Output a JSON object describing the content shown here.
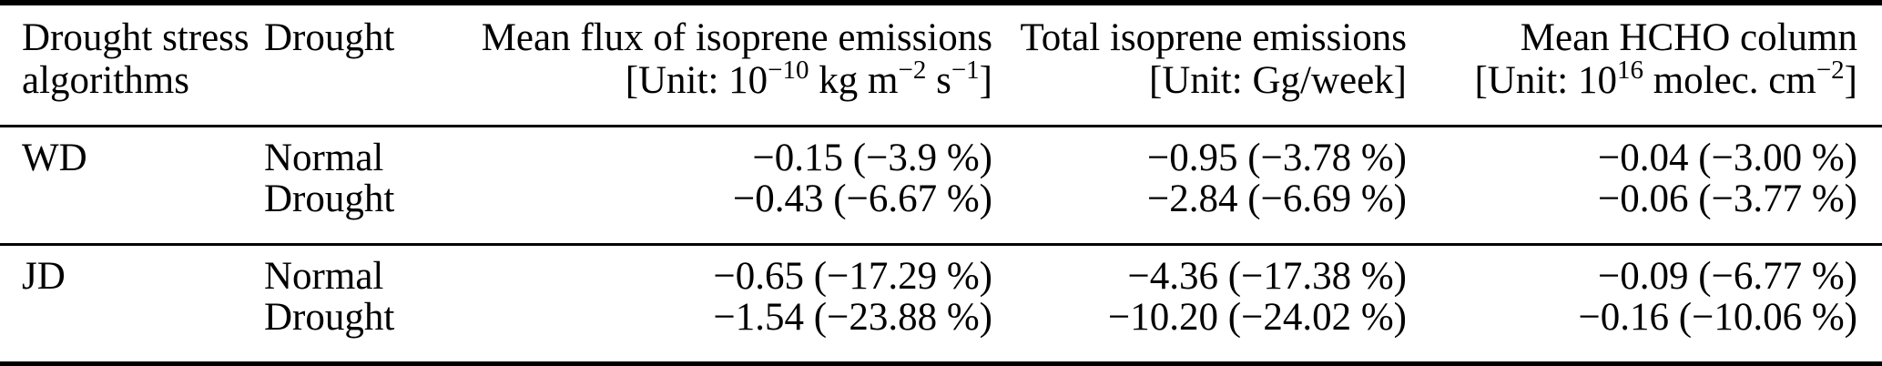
{
  "table": {
    "header": {
      "col1": {
        "line1": "Drought stress",
        "line2": "algorithms"
      },
      "col2": {
        "line1": "Drought"
      },
      "col3": {
        "title": "Mean flux of isoprene emissions",
        "unit_parts": [
          "[Unit: 10",
          "−10",
          " kg m",
          "−2",
          " s",
          "−1",
          "]"
        ]
      },
      "col4": {
        "title": "Total isoprene emissions",
        "unit": "[Unit: Gg/week]"
      },
      "col5": {
        "title": "Mean HCHO column",
        "unit_parts": [
          "[Unit: 10",
          "16",
          " molec. cm",
          "−2",
          "]"
        ]
      }
    },
    "rows": [
      {
        "algorithm": "WD",
        "condition": "Normal",
        "mean_flux": "−0.15 (−3.9 %)",
        "total_emissions": "−0.95 (−3.78 %)",
        "hcho_column": "−0.04 (−3.00 %)"
      },
      {
        "algorithm": "",
        "condition": "Drought",
        "mean_flux": "−0.43 (−6.67 %)",
        "total_emissions": "−2.84 (−6.69 %)",
        "hcho_column": "−0.06 (−3.77 %)"
      },
      {
        "algorithm": "JD",
        "condition": "Normal",
        "mean_flux": "−0.65 (−17.29 %)",
        "total_emissions": "−4.36 (−17.38 %)",
        "hcho_column": "−0.09 (−6.77 %)"
      },
      {
        "algorithm": "",
        "condition": "Drought",
        "mean_flux": "−1.54 (−23.88 %)",
        "total_emissions": "−10.20 (−24.02 %)",
        "hcho_column": "−0.16 (−10.06 %)"
      }
    ],
    "colors": {
      "text": "#000000",
      "background": "#ffffff",
      "rule": "#000000"
    }
  }
}
